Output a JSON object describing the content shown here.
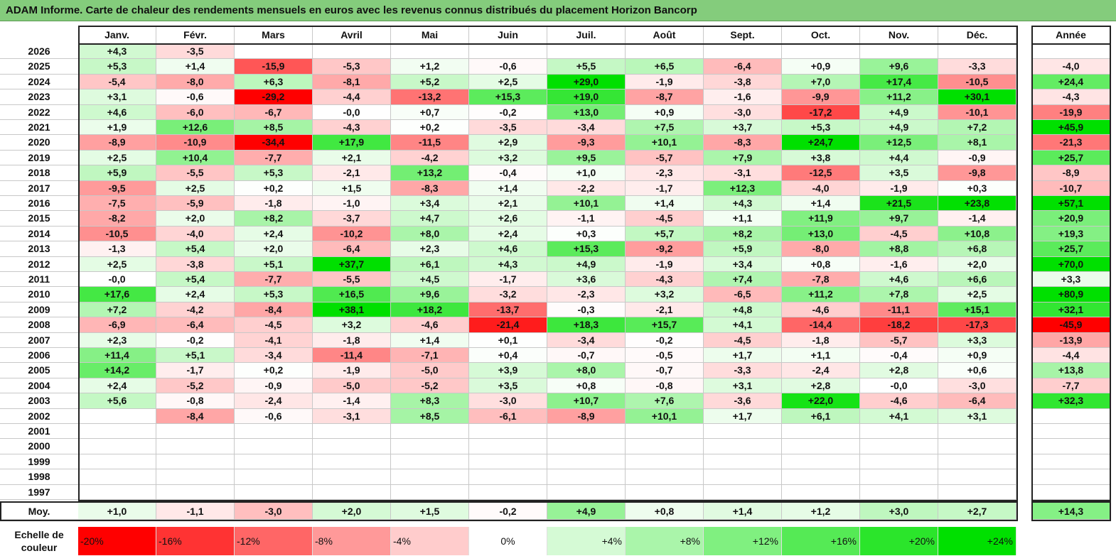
{
  "title": "ADAM Informe. Carte de chaleur des rendements mensuels en euros avec les revenus connus distribués du placement Horizon Bancorp",
  "chart_data": {
    "type": "heatmap",
    "columns": [
      "Janv.",
      "Févr.",
      "Mars",
      "Avril",
      "Mai",
      "Juin",
      "Juil.",
      "Août",
      "Sept.",
      "Oct.",
      "Nov.",
      "Déc."
    ],
    "year_column": "Année",
    "rows": [
      {
        "year": "2026",
        "months": [
          "+4,3",
          "-3,5",
          "",
          "",
          "",
          "",
          "",
          "",
          "",
          "",
          "",
          ""
        ],
        "annual": ""
      },
      {
        "year": "2025",
        "months": [
          "+5,3",
          "+1,4",
          "-15,9",
          "-5,3",
          "+1,2",
          "-0,6",
          "+5,5",
          "+6,5",
          "-6,4",
          "+0,9",
          "+9,6",
          "-3,3"
        ],
        "annual": "-4,0"
      },
      {
        "year": "2024",
        "months": [
          "-5,4",
          "-8,0",
          "+6,3",
          "-8,1",
          "+5,2",
          "+2,5",
          "+29,0",
          "-1,9",
          "-3,8",
          "+7,0",
          "+17,4",
          "-10,5"
        ],
        "annual": "+24,4"
      },
      {
        "year": "2023",
        "months": [
          "+3,1",
          "-0,6",
          "-29,2",
          "-4,4",
          "-13,2",
          "+15,3",
          "+19,0",
          "-8,7",
          "-1,6",
          "-9,9",
          "+11,2",
          "+30,1"
        ],
        "annual": "-4,3"
      },
      {
        "year": "2022",
        "months": [
          "+4,6",
          "-6,0",
          "-6,7",
          "-0,0",
          "+0,7",
          "-0,2",
          "+13,0",
          "+0,9",
          "-3,0",
          "-17,2",
          "+4,9",
          "-10,1"
        ],
        "annual": "-19,9"
      },
      {
        "year": "2021",
        "months": [
          "+1,9",
          "+12,6",
          "+8,5",
          "-4,3",
          "+0,2",
          "-3,5",
          "-3,4",
          "+7,5",
          "+3,7",
          "+5,3",
          "+4,9",
          "+7,2"
        ],
        "annual": "+45,9"
      },
      {
        "year": "2020",
        "months": [
          "-8,9",
          "-10,9",
          "-34,4",
          "+17,9",
          "-11,5",
          "+2,9",
          "-9,3",
          "+10,1",
          "-8,3",
          "+24,7",
          "+12,5",
          "+8,1"
        ],
        "annual": "-21,3"
      },
      {
        "year": "2019",
        "months": [
          "+2,5",
          "+10,4",
          "-7,7",
          "+2,1",
          "-4,2",
          "+3,2",
          "+9,5",
          "-5,7",
          "+7,9",
          "+3,8",
          "+4,4",
          "-0,9"
        ],
        "annual": "+25,7"
      },
      {
        "year": "2018",
        "months": [
          "+5,9",
          "-5,5",
          "+5,3",
          "-2,1",
          "+13,2",
          "-0,4",
          "+1,0",
          "-2,3",
          "-3,1",
          "-12,5",
          "+3,5",
          "-9,8"
        ],
        "annual": "-8,9"
      },
      {
        "year": "2017",
        "months": [
          "-9,5",
          "+2,5",
          "+0,2",
          "+1,5",
          "-8,3",
          "+1,4",
          "-2,2",
          "-1,7",
          "+12,3",
          "-4,0",
          "-1,9",
          "+0,3"
        ],
        "annual": "-10,7"
      },
      {
        "year": "2016",
        "months": [
          "-7,5",
          "-5,9",
          "-1,8",
          "-1,0",
          "+3,4",
          "+2,1",
          "+10,1",
          "+1,4",
          "+4,3",
          "+1,4",
          "+21,5",
          "+23,8"
        ],
        "annual": "+57,1"
      },
      {
        "year": "2015",
        "months": [
          "-8,2",
          "+2,0",
          "+8,2",
          "-3,7",
          "+4,7",
          "+2,6",
          "-1,1",
          "-4,5",
          "+1,1",
          "+11,9",
          "+9,7",
          "-1,4"
        ],
        "annual": "+20,9"
      },
      {
        "year": "2014",
        "months": [
          "-10,5",
          "-4,0",
          "+2,4",
          "-10,2",
          "+8,0",
          "+2,4",
          "+0,3",
          "+5,7",
          "+8,2",
          "+13,0",
          "-4,5",
          "+10,8"
        ],
        "annual": "+19,3"
      },
      {
        "year": "2013",
        "months": [
          "-1,3",
          "+5,4",
          "+2,0",
          "-6,4",
          "+2,3",
          "+4,6",
          "+15,3",
          "-9,2",
          "+5,9",
          "-8,0",
          "+8,8",
          "+6,8"
        ],
        "annual": "+25,7"
      },
      {
        "year": "2012",
        "months": [
          "+2,5",
          "-3,8",
          "+5,1",
          "+37,7",
          "+6,1",
          "+4,3",
          "+4,9",
          "-1,9",
          "+3,4",
          "+0,8",
          "-1,6",
          "+2,0"
        ],
        "annual": "+70,0"
      },
      {
        "year": "2011",
        "months": [
          "-0,0",
          "+5,4",
          "-7,7",
          "-5,5",
          "+4,5",
          "-1,7",
          "+3,6",
          "-4,3",
          "+7,4",
          "-7,8",
          "+4,6",
          "+6,6"
        ],
        "annual": "+3,3"
      },
      {
        "year": "2010",
        "months": [
          "+17,6",
          "+2,4",
          "+5,3",
          "+16,5",
          "+9,6",
          "-3,2",
          "-2,3",
          "+3,2",
          "-6,5",
          "+11,2",
          "+7,8",
          "+2,5"
        ],
        "annual": "+80,9"
      },
      {
        "year": "2009",
        "months": [
          "+7,2",
          "-4,2",
          "-8,4",
          "+38,1",
          "+18,2",
          "-13,7",
          "-0,3",
          "-2,1",
          "+4,8",
          "-4,6",
          "-11,1",
          "+15,1"
        ],
        "annual": "+32,1"
      },
      {
        "year": "2008",
        "months": [
          "-6,9",
          "-6,4",
          "-4,5",
          "+3,2",
          "-4,6",
          "-21,4",
          "+18,3",
          "+15,7",
          "+4,1",
          "-14,4",
          "-18,2",
          "-17,3"
        ],
        "annual": "-45,9"
      },
      {
        "year": "2007",
        "months": [
          "+2,3",
          "-0,2",
          "-4,1",
          "-1,8",
          "+1,4",
          "+0,1",
          "-3,4",
          "-0,2",
          "-4,5",
          "-1,8",
          "-5,7",
          "+3,3"
        ],
        "annual": "-13,9"
      },
      {
        "year": "2006",
        "months": [
          "+11,4",
          "+5,1",
          "-3,4",
          "-11,4",
          "-7,1",
          "+0,4",
          "-0,7",
          "-0,5",
          "+1,7",
          "+1,1",
          "-0,4",
          "+0,9"
        ],
        "annual": "-4,4"
      },
      {
        "year": "2005",
        "months": [
          "+14,2",
          "-1,7",
          "+0,2",
          "-1,9",
          "-5,0",
          "+3,9",
          "+8,0",
          "-0,7",
          "-3,3",
          "-2,4",
          "+2,8",
          "+0,6"
        ],
        "annual": "+13,8"
      },
      {
        "year": "2004",
        "months": [
          "+2,4",
          "-5,2",
          "-0,9",
          "-5,0",
          "-5,2",
          "+3,5",
          "+0,8",
          "-0,8",
          "+3,1",
          "+2,8",
          "-0,0",
          "-3,0"
        ],
        "annual": "-7,7"
      },
      {
        "year": "2003",
        "months": [
          "+5,6",
          "-0,8",
          "-2,4",
          "-1,4",
          "+8,3",
          "-3,0",
          "+10,7",
          "+7,6",
          "-3,6",
          "+22,0",
          "-4,6",
          "-6,4"
        ],
        "annual": "+32,3"
      },
      {
        "year": "2002",
        "months": [
          "",
          "-8,4",
          "-0,6",
          "-3,1",
          "+8,5",
          "-6,1",
          "-8,9",
          "+10,1",
          "+1,7",
          "+6,1",
          "+4,1",
          "+3,1"
        ],
        "annual": ""
      },
      {
        "year": "2001",
        "months": [
          "",
          "",
          "",
          "",
          "",
          "",
          "",
          "",
          "",
          "",
          "",
          ""
        ],
        "annual": ""
      },
      {
        "year": "2000",
        "months": [
          "",
          "",
          "",
          "",
          "",
          "",
          "",
          "",
          "",
          "",
          "",
          ""
        ],
        "annual": ""
      },
      {
        "year": "1999",
        "months": [
          "",
          "",
          "",
          "",
          "",
          "",
          "",
          "",
          "",
          "",
          "",
          ""
        ],
        "annual": ""
      },
      {
        "year": "1998",
        "months": [
          "",
          "",
          "",
          "",
          "",
          "",
          "",
          "",
          "",
          "",
          "",
          ""
        ],
        "annual": ""
      },
      {
        "year": "1997",
        "months": [
          "",
          "",
          "",
          "",
          "",
          "",
          "",
          "",
          "",
          "",
          "",
          ""
        ],
        "annual": ""
      }
    ],
    "average": {
      "label": "Moy.",
      "months": [
        "+1,0",
        "-1,1",
        "-3,0",
        "+2,0",
        "+1,5",
        "-0,2",
        "+4,9",
        "+0,8",
        "+1,4",
        "+1,2",
        "+3,0",
        "+2,7"
      ],
      "annual": "+14,3"
    },
    "color_scale": {
      "label": "Echelle de couleur",
      "labels": [
        "-20%",
        "-16%",
        "-12%",
        "-8%",
        "-4%",
        "0%",
        "+4%",
        "+8%",
        "+12%",
        "+16%",
        "+20%",
        "+24%"
      ],
      "values": [
        -20,
        -16,
        -12,
        -8,
        -4,
        0,
        4,
        8,
        12,
        16,
        20,
        24
      ]
    },
    "colors": {
      "negative_max": "#ff0000",
      "neutral": "#ffffff",
      "positive_max": "#00e000",
      "title_bar": "#84cc7c"
    }
  }
}
